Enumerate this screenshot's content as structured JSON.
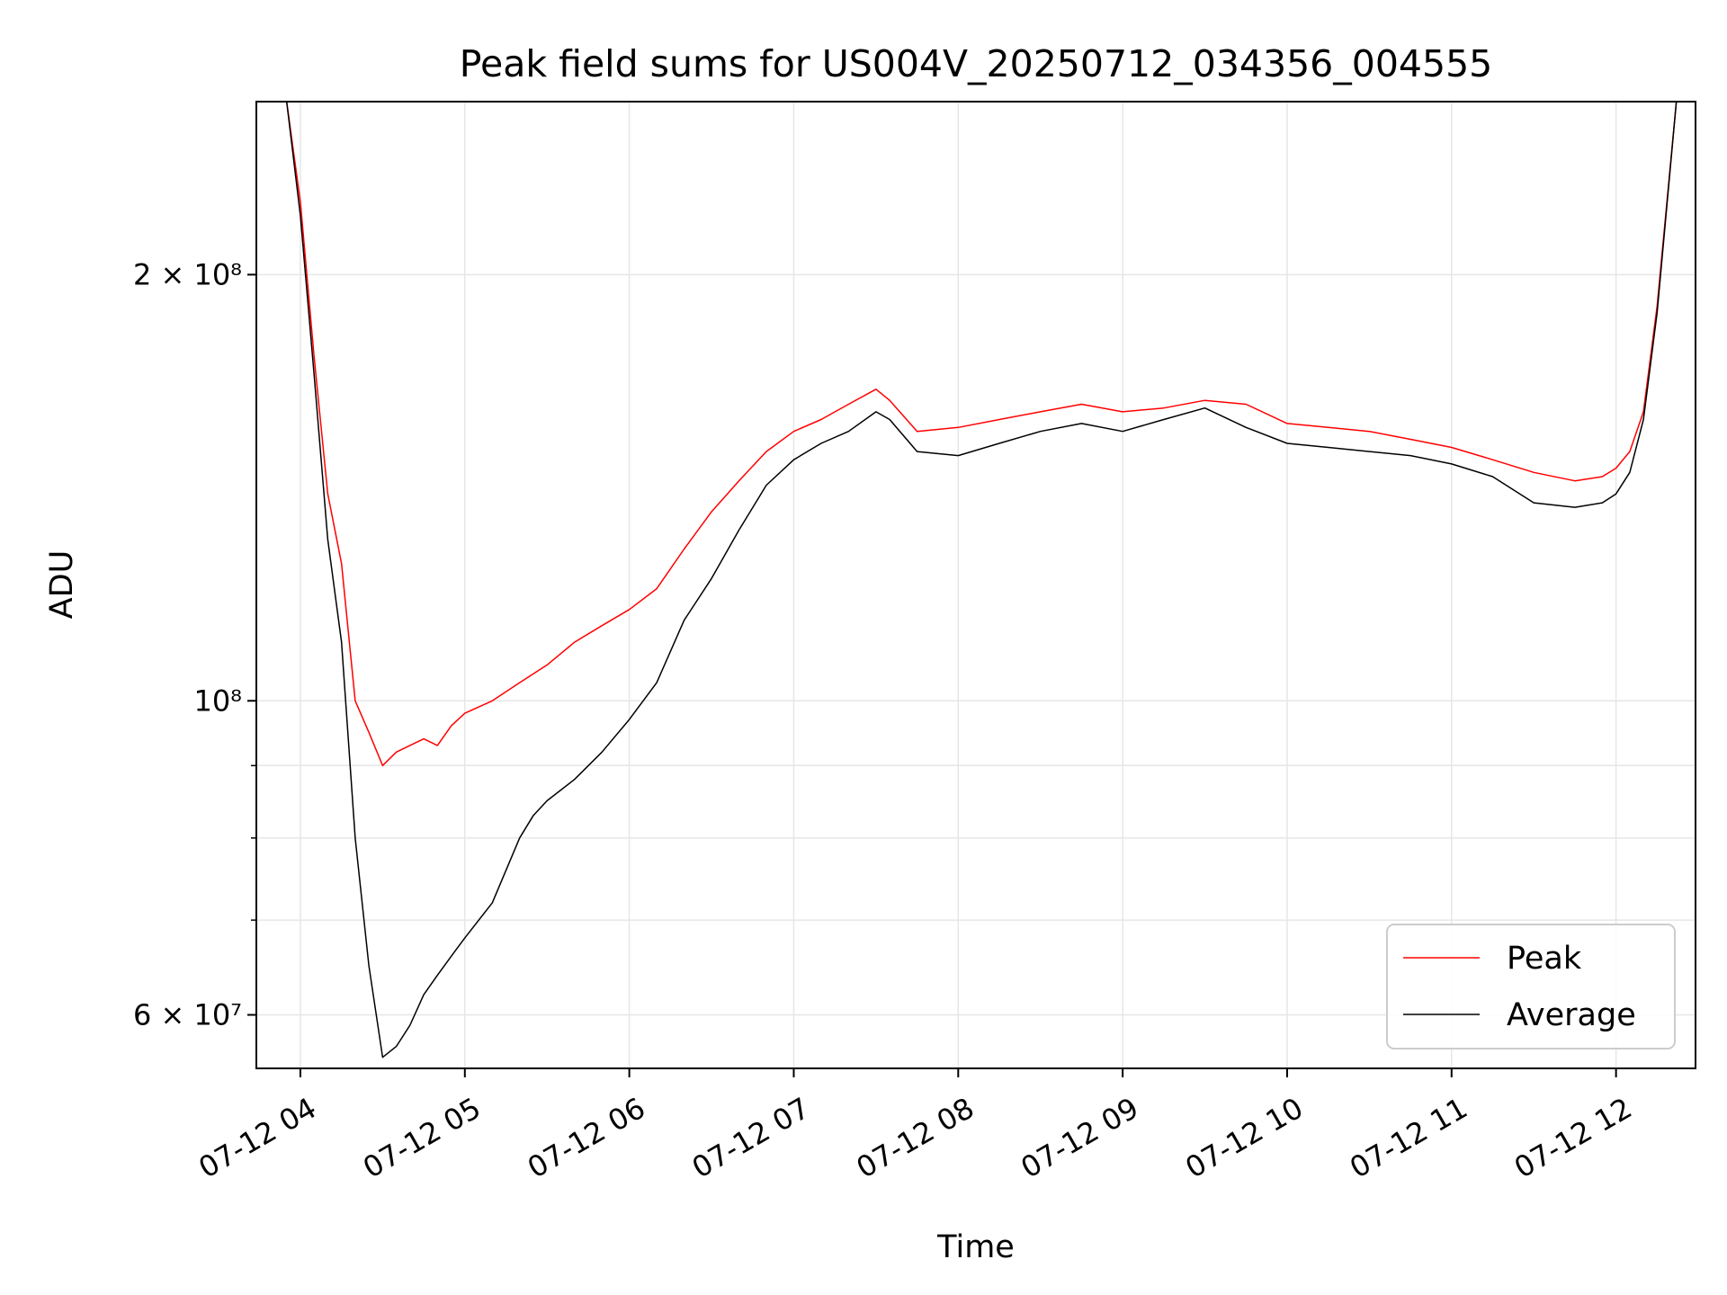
{
  "chart_data": {
    "type": "line",
    "title": "Peak field sums for US004V_20250712_034356_004555",
    "xlabel": "Time",
    "ylabel": "ADU",
    "y_scale": "log",
    "ylim": [
      55000000,
      265000000
    ],
    "xlim": [
      "2025-07-12T03:43:56",
      "2025-07-12T12:29:00"
    ],
    "x_ticks": [
      {
        "t": "2025-07-12T04:00:00",
        "label": "07-12 04"
      },
      {
        "t": "2025-07-12T05:00:00",
        "label": "07-12 05"
      },
      {
        "t": "2025-07-12T06:00:00",
        "label": "07-12 06"
      },
      {
        "t": "2025-07-12T07:00:00",
        "label": "07-12 07"
      },
      {
        "t": "2025-07-12T08:00:00",
        "label": "07-12 08"
      },
      {
        "t": "2025-07-12T09:00:00",
        "label": "07-12 09"
      },
      {
        "t": "2025-07-12T10:00:00",
        "label": "07-12 10"
      },
      {
        "t": "2025-07-12T11:00:00",
        "label": "07-12 11"
      },
      {
        "t": "2025-07-12T12:00:00",
        "label": "07-12 12"
      }
    ],
    "y_ticks": [
      {
        "v": 60000000,
        "label": "6 × 10⁷"
      },
      {
        "v": 100000000,
        "label": "10⁸"
      },
      {
        "v": 200000000,
        "label": "2 × 10⁸"
      }
    ],
    "y_minor_ticks": [
      70000000,
      80000000,
      90000000
    ],
    "grid": true,
    "legend": {
      "position": "lower-right",
      "entries": [
        "Peak",
        "Average"
      ]
    },
    "series": [
      {
        "name": "Peak",
        "color": "#ff0000",
        "x": [
          "2025-07-12T03:55:00",
          "2025-07-12T04:00:00",
          "2025-07-12T04:05:00",
          "2025-07-12T04:10:00",
          "2025-07-12T04:15:00",
          "2025-07-12T04:20:00",
          "2025-07-12T04:25:00",
          "2025-07-12T04:30:00",
          "2025-07-12T04:35:00",
          "2025-07-12T04:40:00",
          "2025-07-12T04:45:00",
          "2025-07-12T04:50:00",
          "2025-07-12T04:55:00",
          "2025-07-12T05:00:00",
          "2025-07-12T05:10:00",
          "2025-07-12T05:20:00",
          "2025-07-12T05:30:00",
          "2025-07-12T05:40:00",
          "2025-07-12T05:50:00",
          "2025-07-12T06:00:00",
          "2025-07-12T06:10:00",
          "2025-07-12T06:20:00",
          "2025-07-12T06:30:00",
          "2025-07-12T06:40:00",
          "2025-07-12T06:50:00",
          "2025-07-12T07:00:00",
          "2025-07-12T07:10:00",
          "2025-07-12T07:20:00",
          "2025-07-12T07:30:00",
          "2025-07-12T07:35:00",
          "2025-07-12T07:45:00",
          "2025-07-12T08:00:00",
          "2025-07-12T08:15:00",
          "2025-07-12T08:30:00",
          "2025-07-12T08:45:00",
          "2025-07-12T09:00:00",
          "2025-07-12T09:15:00",
          "2025-07-12T09:30:00",
          "2025-07-12T09:45:00",
          "2025-07-12T10:00:00",
          "2025-07-12T10:15:00",
          "2025-07-12T10:30:00",
          "2025-07-12T10:45:00",
          "2025-07-12T11:00:00",
          "2025-07-12T11:15:00",
          "2025-07-12T11:30:00",
          "2025-07-12T11:45:00",
          "2025-07-12T11:55:00",
          "2025-07-12T12:00:00",
          "2025-07-12T12:05:00",
          "2025-07-12T12:10:00",
          "2025-07-12T12:15:00",
          "2025-07-12T12:22:00"
        ],
        "y": [
          265000000,
          225000000,
          175000000,
          140000000,
          125000000,
          100000000,
          95000000,
          90000000,
          92000000,
          93000000,
          94000000,
          93000000,
          96000000,
          98000000,
          100000000,
          103000000,
          106000000,
          110000000,
          113000000,
          116000000,
          120000000,
          128000000,
          136000000,
          143000000,
          150000000,
          155000000,
          158000000,
          162000000,
          166000000,
          163000000,
          155000000,
          156000000,
          158000000,
          160000000,
          162000000,
          160000000,
          161000000,
          163000000,
          162000000,
          157000000,
          156000000,
          155000000,
          153000000,
          151000000,
          148000000,
          145000000,
          143000000,
          144000000,
          146000000,
          150000000,
          160000000,
          190000000,
          265000000
        ]
      },
      {
        "name": "Average",
        "color": "#000000",
        "x": [
          "2025-07-12T03:55:00",
          "2025-07-12T04:00:00",
          "2025-07-12T04:05:00",
          "2025-07-12T04:10:00",
          "2025-07-12T04:15:00",
          "2025-07-12T04:20:00",
          "2025-07-12T04:25:00",
          "2025-07-12T04:30:00",
          "2025-07-12T04:35:00",
          "2025-07-12T04:40:00",
          "2025-07-12T04:45:00",
          "2025-07-12T04:50:00",
          "2025-07-12T04:55:00",
          "2025-07-12T05:00:00",
          "2025-07-12T05:10:00",
          "2025-07-12T05:20:00",
          "2025-07-12T05:25:00",
          "2025-07-12T05:30:00",
          "2025-07-12T05:40:00",
          "2025-07-12T05:50:00",
          "2025-07-12T06:00:00",
          "2025-07-12T06:10:00",
          "2025-07-12T06:20:00",
          "2025-07-12T06:30:00",
          "2025-07-12T06:40:00",
          "2025-07-12T06:50:00",
          "2025-07-12T07:00:00",
          "2025-07-12T07:10:00",
          "2025-07-12T07:20:00",
          "2025-07-12T07:30:00",
          "2025-07-12T07:35:00",
          "2025-07-12T07:45:00",
          "2025-07-12T08:00:00",
          "2025-07-12T08:15:00",
          "2025-07-12T08:30:00",
          "2025-07-12T08:45:00",
          "2025-07-12T09:00:00",
          "2025-07-12T09:15:00",
          "2025-07-12T09:30:00",
          "2025-07-12T09:45:00",
          "2025-07-12T10:00:00",
          "2025-07-12T10:15:00",
          "2025-07-12T10:30:00",
          "2025-07-12T10:45:00",
          "2025-07-12T11:00:00",
          "2025-07-12T11:15:00",
          "2025-07-12T11:30:00",
          "2025-07-12T11:45:00",
          "2025-07-12T11:55:00",
          "2025-07-12T12:00:00",
          "2025-07-12T12:05:00",
          "2025-07-12T12:10:00",
          "2025-07-12T12:15:00",
          "2025-07-12T12:22:00"
        ],
        "y": [
          265000000,
          220000000,
          170000000,
          130000000,
          110000000,
          80000000,
          65000000,
          56000000,
          57000000,
          59000000,
          62000000,
          64000000,
          66000000,
          68000000,
          72000000,
          80000000,
          83000000,
          85000000,
          88000000,
          92000000,
          97000000,
          103000000,
          114000000,
          122000000,
          132000000,
          142000000,
          148000000,
          152000000,
          155000000,
          160000000,
          158000000,
          150000000,
          149000000,
          152000000,
          155000000,
          157000000,
          155000000,
          158000000,
          161000000,
          156000000,
          152000000,
          151000000,
          150000000,
          149000000,
          147000000,
          144000000,
          138000000,
          137000000,
          138000000,
          140000000,
          145000000,
          158000000,
          188000000,
          265000000
        ]
      }
    ]
  }
}
